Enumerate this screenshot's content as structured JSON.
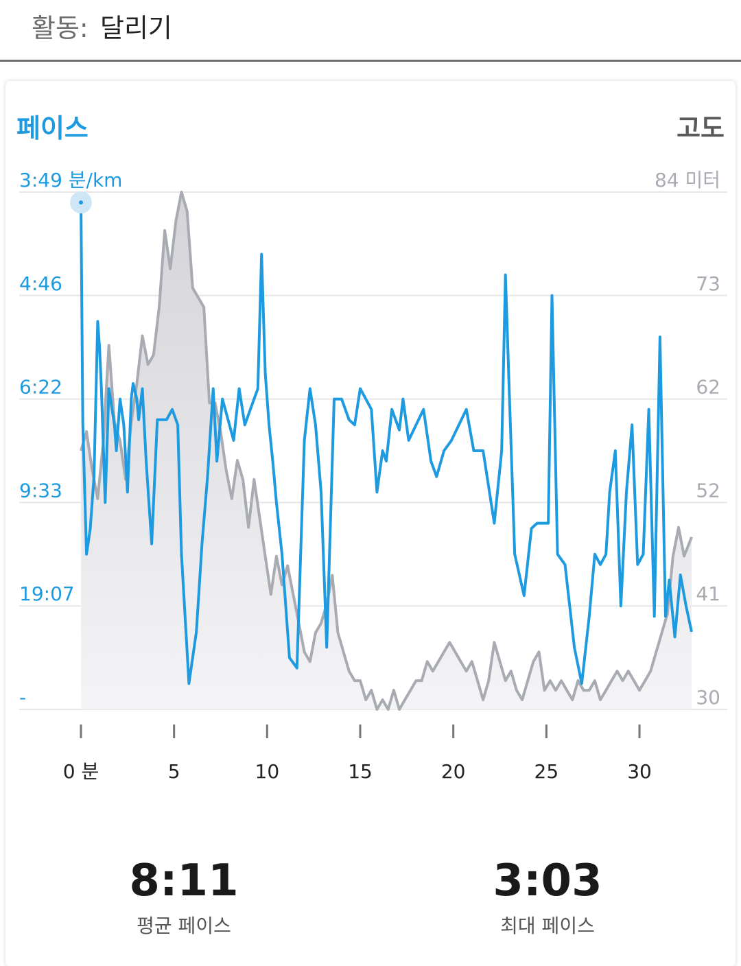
{
  "header": {
    "label": "활동:",
    "value": "달리기"
  },
  "chart_titles": {
    "left": "페이스",
    "right": "고도"
  },
  "stats": [
    {
      "value": "8:11",
      "label": "평균 페이스"
    },
    {
      "value": "3:03",
      "label": "최대 페이스"
    }
  ],
  "colors": {
    "pace": "#1e9be0",
    "elevation": "#a9abb3",
    "grid": "#e6e6e6"
  },
  "chart_data": {
    "type": "line",
    "x_ticks": [
      "0 분",
      "5",
      "10",
      "15",
      "20",
      "25",
      "30"
    ],
    "x_tick_values": [
      0,
      5,
      10,
      15,
      20,
      25,
      30
    ],
    "left_axis": {
      "ticks": [
        "3:49 분/km",
        "4:46",
        "6:22",
        "9:33",
        "19:07",
        "-"
      ],
      "color": "#1e9be0"
    },
    "right_axis": {
      "ticks": [
        "84 미터",
        "73",
        "62",
        "52",
        "41",
        "30"
      ],
      "tick_values": [
        84,
        73,
        62,
        52,
        41,
        30
      ],
      "color": "#a9abb3"
    },
    "series": [
      {
        "key": "pace_level",
        "x": [
          0,
          0.1,
          0.3,
          0.5,
          0.7,
          0.9,
          1.0,
          1.1,
          1.3,
          1.5,
          1.8,
          1.9,
          2.1,
          2.3,
          2.5,
          2.7,
          2.8,
          3.0,
          3.1,
          3.3,
          3.5,
          3.8,
          4.1,
          4.4,
          4.6,
          4.9,
          5.2,
          5.4,
          5.8,
          6.2,
          6.5,
          6.8,
          7.1,
          7.3,
          7.6,
          7.9,
          8.2,
          8.5,
          8.8,
          9.1,
          9.3,
          9.5,
          9.7,
          9.9,
          10.1,
          10.3,
          10.5,
          10.8,
          11.2,
          11.6,
          12.0,
          12.3,
          12.6,
          12.9,
          13.2,
          13.6,
          14.0,
          14.4,
          14.7,
          15.0,
          15.3,
          15.6,
          15.9,
          16.2,
          16.4,
          16.7,
          17.1,
          17.3,
          17.6,
          18.0,
          18.4,
          18.8,
          19.1,
          19.5,
          19.9,
          20.3,
          20.7,
          21.1,
          21.6,
          22.2,
          22.6,
          22.8,
          23.0,
          23.3,
          23.8,
          24.2,
          24.5,
          24.8,
          25.1,
          25.3,
          25.6,
          26.0,
          26.5,
          26.9,
          27.3,
          27.6,
          27.9,
          28.2,
          28.4,
          28.7,
          29.0,
          29.3,
          29.6,
          29.9,
          30.2,
          30.5,
          30.8,
          31.1,
          31.4,
          31.6,
          31.9,
          32.2,
          32.5,
          32.8
        ],
        "values": [
          0.98,
          0.55,
          0.3,
          0.35,
          0.45,
          0.75,
          0.7,
          0.62,
          0.4,
          0.62,
          0.55,
          0.5,
          0.6,
          0.55,
          0.42,
          0.6,
          0.63,
          0.6,
          0.56,
          0.62,
          0.48,
          0.32,
          0.56,
          0.56,
          0.56,
          0.58,
          0.55,
          0.3,
          0.05,
          0.15,
          0.32,
          0.45,
          0.62,
          0.48,
          0.6,
          0.56,
          0.52,
          0.62,
          0.55,
          0.58,
          0.6,
          0.62,
          0.88,
          0.65,
          0.55,
          0.48,
          0.4,
          0.3,
          0.1,
          0.08,
          0.52,
          0.62,
          0.55,
          0.42,
          0.12,
          0.6,
          0.6,
          0.56,
          0.55,
          0.62,
          0.6,
          0.58,
          0.42,
          0.5,
          0.48,
          0.58,
          0.54,
          0.6,
          0.52,
          0.55,
          0.58,
          0.48,
          0.45,
          0.5,
          0.52,
          0.55,
          0.58,
          0.5,
          0.5,
          0.36,
          0.5,
          0.84,
          0.62,
          0.3,
          0.22,
          0.35,
          0.36,
          0.36,
          0.36,
          0.8,
          0.3,
          0.28,
          0.12,
          0.05,
          0.18,
          0.3,
          0.28,
          0.3,
          0.42,
          0.5,
          0.2,
          0.42,
          0.55,
          0.28,
          0.3,
          0.58,
          0.18,
          0.72,
          0.18,
          0.25,
          0.14,
          0.26,
          0.2,
          0.15
        ]
      },
      {
        "key": "elevation",
        "x": [
          0,
          0.3,
          0.6,
          0.9,
          1.2,
          1.5,
          1.8,
          2.1,
          2.4,
          2.7,
          3.0,
          3.3,
          3.6,
          3.9,
          4.2,
          4.5,
          4.8,
          5.1,
          5.4,
          5.7,
          6.0,
          6.3,
          6.6,
          6.9,
          7.2,
          7.5,
          7.8,
          8.1,
          8.4,
          8.7,
          9.0,
          9.3,
          9.6,
          9.9,
          10.2,
          10.5,
          10.8,
          11.1,
          11.4,
          11.7,
          12.0,
          12.3,
          12.6,
          12.9,
          13.2,
          13.5,
          13.8,
          14.1,
          14.4,
          14.7,
          15.0,
          15.3,
          15.6,
          15.9,
          16.2,
          16.5,
          16.8,
          17.1,
          17.4,
          17.7,
          18.0,
          18.3,
          18.6,
          18.9,
          19.2,
          19.5,
          19.8,
          20.1,
          20.4,
          20.7,
          21.0,
          21.3,
          21.6,
          21.9,
          22.2,
          22.5,
          22.8,
          23.1,
          23.4,
          23.7,
          24.0,
          24.3,
          24.6,
          24.9,
          25.2,
          25.5,
          25.8,
          26.1,
          26.4,
          26.7,
          27.0,
          27.3,
          27.6,
          27.9,
          28.2,
          28.5,
          28.8,
          29.1,
          29.4,
          29.7,
          30.0,
          30.3,
          30.6,
          30.9,
          31.2,
          31.5,
          31.8,
          32.1,
          32.4,
          32.8
        ],
        "values": [
          57,
          59,
          55,
          52,
          58,
          68,
          60,
          58,
          54,
          60,
          64,
          69,
          66,
          67,
          72,
          80,
          76,
          81,
          84,
          82,
          74,
          73,
          72,
          62,
          62,
          59,
          55,
          52,
          56,
          54,
          49,
          54,
          50,
          46,
          42,
          46,
          43,
          45,
          42,
          39,
          36,
          35,
          38,
          39,
          41,
          44,
          38,
          36,
          34,
          33,
          33,
          31,
          32,
          30,
          31,
          30,
          32,
          30,
          31,
          32,
          33,
          33,
          35,
          34,
          35,
          36,
          37,
          36,
          35,
          34,
          35,
          33,
          31,
          33,
          37,
          35,
          33,
          34,
          32,
          31,
          33,
          35,
          36,
          32,
          33,
          32,
          33,
          32,
          31,
          33,
          32,
          32,
          33,
          31,
          32,
          33,
          34,
          33,
          34,
          33,
          32,
          33,
          34,
          36,
          38,
          40,
          46,
          49,
          46,
          48
        ]
      }
    ]
  }
}
